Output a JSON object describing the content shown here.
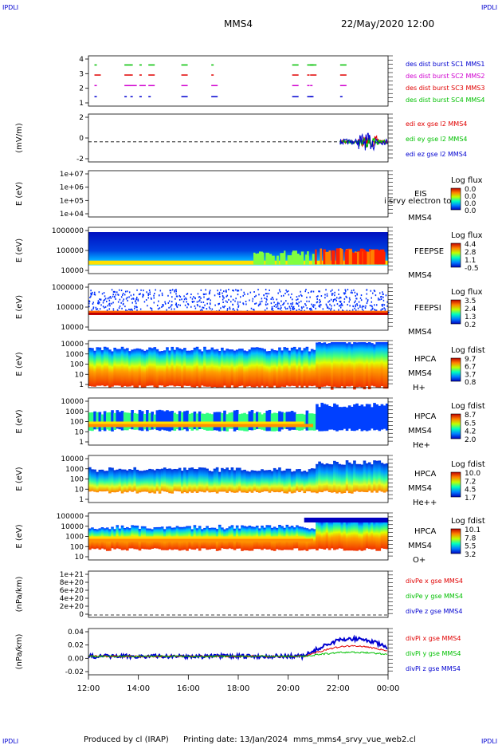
{
  "header": {
    "corner": "IPDLI",
    "spacecraft": "MMS4",
    "datetime": "22/May/2020 12:00"
  },
  "footer": {
    "produced_by": "Produced by cl (IRAP)",
    "printing_date": "Printing date: 13/Jan/2024",
    "filename": "mms_mms4_srvy_vue_web2.cl"
  },
  "time_axis": {
    "ticks": [
      "12:00",
      "14:00",
      "16:00",
      "18:00",
      "20:00",
      "22:00",
      "00:00"
    ],
    "start_hour": 12,
    "end_hour": 24
  },
  "colors": {
    "blue": "#0000d0",
    "red": "#e00000",
    "green": "#00c000",
    "magenta": "#d000d0"
  },
  "panels": [
    {
      "id": "burst",
      "type": "timeline",
      "ylabel": "",
      "yticks": [
        "4",
        "3",
        "2",
        "1"
      ],
      "legend": [
        {
          "text": "des dist burst SC1 MMS1",
          "color": "#0000d0"
        },
        {
          "text": "des dist burst SC2 MMS2",
          "color": "#d000d0"
        },
        {
          "text": "des dist burst SC3 MMS3",
          "color": "#e00000"
        },
        {
          "text": "des dist burst SC4 MMS4",
          "color": "#00c000"
        }
      ]
    },
    {
      "id": "edi",
      "type": "line",
      "ylabel": "(mV/m)",
      "yticks": [
        "2",
        "0",
        "-2"
      ],
      "legend": [
        {
          "text": "edi ex gse l2 MMS4",
          "color": "#e00000"
        },
        {
          "text": "edi ey gse l2 MMS4",
          "color": "#00c000"
        },
        {
          "text": "edi ez gse l2 MMS4",
          "color": "#0000d0"
        }
      ]
    },
    {
      "id": "eis",
      "type": "empty",
      "ylabel": "E (eV)",
      "yticks": [
        "1e+07",
        "1e+06",
        "1e+05",
        "1e+04"
      ],
      "labels": [
        "EIS",
        "MMS4"
      ],
      "overlay": "i srvy electron to",
      "cbar_title": "Log flux",
      "cbar_ticks": [
        "0.0",
        "0.0",
        "0.0",
        "0.0"
      ]
    },
    {
      "id": "feepse",
      "type": "spectro",
      "ylabel": "E (eV)",
      "yticks": [
        "1000000",
        "100000",
        "10000"
      ],
      "labels": [
        "FEEPSE",
        "MMS4"
      ],
      "cbar_title": "Log flux",
      "cbar_ticks": [
        "4.4",
        "2.8",
        "1.1",
        "-0.5"
      ]
    },
    {
      "id": "feepsi",
      "type": "spectro",
      "ylabel": "E (eV)",
      "yticks": [
        "1000000",
        "100000",
        "10000"
      ],
      "labels": [
        "FEEPSI",
        "MMS4"
      ],
      "cbar_title": "Log flux",
      "cbar_ticks": [
        "3.5",
        "2.4",
        "1.3",
        "0.2"
      ]
    },
    {
      "id": "hpca_h",
      "type": "spectro",
      "ylabel": "E (eV)",
      "yticks": [
        "10000",
        "1000",
        "100",
        "10",
        "1"
      ],
      "labels": [
        "HPCA",
        "MMS4",
        "H+"
      ],
      "cbar_title": "Log fdist",
      "cbar_ticks": [
        "9.7",
        "6.7",
        "3.7",
        "0.8"
      ]
    },
    {
      "id": "hpca_he",
      "type": "spectro",
      "ylabel": "E (eV)",
      "yticks": [
        "10000",
        "1000",
        "100",
        "10",
        "1"
      ],
      "labels": [
        "HPCA",
        "MMS4",
        "He+"
      ],
      "cbar_title": "Log fdist",
      "cbar_ticks": [
        "8.7",
        "6.5",
        "4.2",
        "2.0"
      ]
    },
    {
      "id": "hpca_hepp",
      "type": "spectro",
      "ylabel": "E (eV)",
      "yticks": [
        "10000",
        "1000",
        "100",
        "10",
        "1"
      ],
      "labels": [
        "HPCA",
        "MMS4",
        "He++"
      ],
      "cbar_title": "Log fdist",
      "cbar_ticks": [
        "10.0",
        "7.2",
        "4.5",
        "1.7"
      ]
    },
    {
      "id": "hpca_o",
      "type": "spectro",
      "ylabel": "E (eV)",
      "yticks": [
        "100000",
        "10000",
        "1000",
        "100",
        "10"
      ],
      "labels": [
        "HPCA",
        "MMS4",
        "O+"
      ],
      "cbar_title": "Log fdist",
      "cbar_ticks": [
        "10.1",
        "7.8",
        "5.5",
        "3.2"
      ]
    },
    {
      "id": "divpe",
      "type": "line",
      "ylabel": "(nPa/km)",
      "yticks": [
        "1e+21",
        "8e+20",
        "6e+20",
        "4e+20",
        "2e+20",
        "0"
      ],
      "legend": [
        {
          "text": "divPe x gse MMS4",
          "color": "#e00000"
        },
        {
          "text": "divPe y gse MMS4",
          "color": "#00c000"
        },
        {
          "text": "divPe z gse MMS4",
          "color": "#0000d0"
        }
      ]
    },
    {
      "id": "divpi",
      "type": "line",
      "ylabel": "(nPa/km)",
      "yticks": [
        "0.04",
        "0.02",
        "0.00",
        "-0.02"
      ],
      "legend": [
        {
          "text": "divPi x gse MMS4",
          "color": "#e00000"
        },
        {
          "text": "divPi y gse MMS4",
          "color": "#00c000"
        },
        {
          "text": "divPi z gse MMS4",
          "color": "#0000d0"
        }
      ]
    }
  ]
}
